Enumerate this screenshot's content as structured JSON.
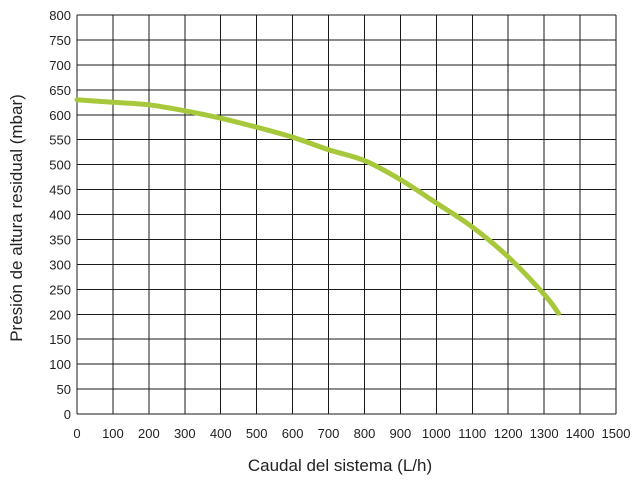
{
  "chart_data": {
    "type": "line",
    "title": "",
    "xlabel": "Caudal del sistema (L/h)",
    "ylabel": "Presión de altura residual (mbar)",
    "xlim": [
      0,
      1500
    ],
    "ylim": [
      0,
      800
    ],
    "x_ticks": [
      "0",
      "100",
      "200",
      "300",
      "400",
      "500",
      "600",
      "700",
      "800",
      "900",
      "1000",
      "1100",
      "1200",
      "1300",
      "1400",
      "1500"
    ],
    "y_ticks": [
      "0",
      "50",
      "100",
      "150",
      "200",
      "250",
      "300",
      "350",
      "400",
      "450",
      "500",
      "550",
      "600",
      "650",
      "700",
      "750",
      "800"
    ],
    "grid": true,
    "legend": "none",
    "series": [
      {
        "color": "#a8c83c",
        "x": [
          0,
          100,
          200,
          300,
          400,
          500,
          600,
          700,
          800,
          900,
          1000,
          1100,
          1200,
          1300,
          1340
        ],
        "y": [
          630,
          625,
          620,
          608,
          593,
          575,
          555,
          530,
          508,
          470,
          423,
          375,
          315,
          240,
          202
        ]
      }
    ]
  }
}
